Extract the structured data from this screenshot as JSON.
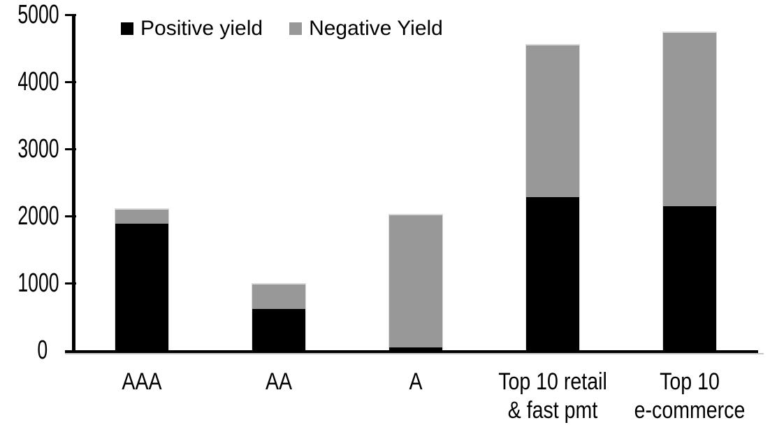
{
  "chart_data": {
    "type": "bar",
    "stacked": true,
    "title": "",
    "xlabel": "",
    "ylabel": "",
    "categories": [
      "AAA",
      "AA",
      "A",
      "Top 10 retail & fast pmt",
      "Top 10 e-commerce"
    ],
    "category_label_lines": [
      [
        "AAA"
      ],
      [
        "AA"
      ],
      [
        "A"
      ],
      [
        "Top 10 retail",
        "& fast pmt"
      ],
      [
        "Top 10",
        "e-commerce"
      ]
    ],
    "series": [
      {
        "name": "Positive yield",
        "color": "#000000",
        "values": [
          1890,
          610,
          40,
          2280,
          2150
        ]
      },
      {
        "name": "Negative Yield",
        "color": "#989898",
        "values": [
          230,
          390,
          1990,
          2280,
          2600
        ]
      }
    ],
    "totals": [
      2120,
      1000,
      2030,
      4560,
      4750
    ],
    "ylim": [
      0,
      5000
    ],
    "yticks": [
      0,
      1000,
      2000,
      3000,
      4000,
      5000
    ],
    "ytick_labels": [
      "0",
      "1000",
      "2000",
      "3000",
      "4000",
      "5000"
    ],
    "grid": "off",
    "legend_position": "top-left"
  },
  "colors": {
    "background": "#ffffff",
    "axis": "#000000",
    "axis_shadow": "#c8c8c8",
    "segment_edge": "#d9d9d9",
    "positive": "#000000",
    "negative": "#989898"
  }
}
